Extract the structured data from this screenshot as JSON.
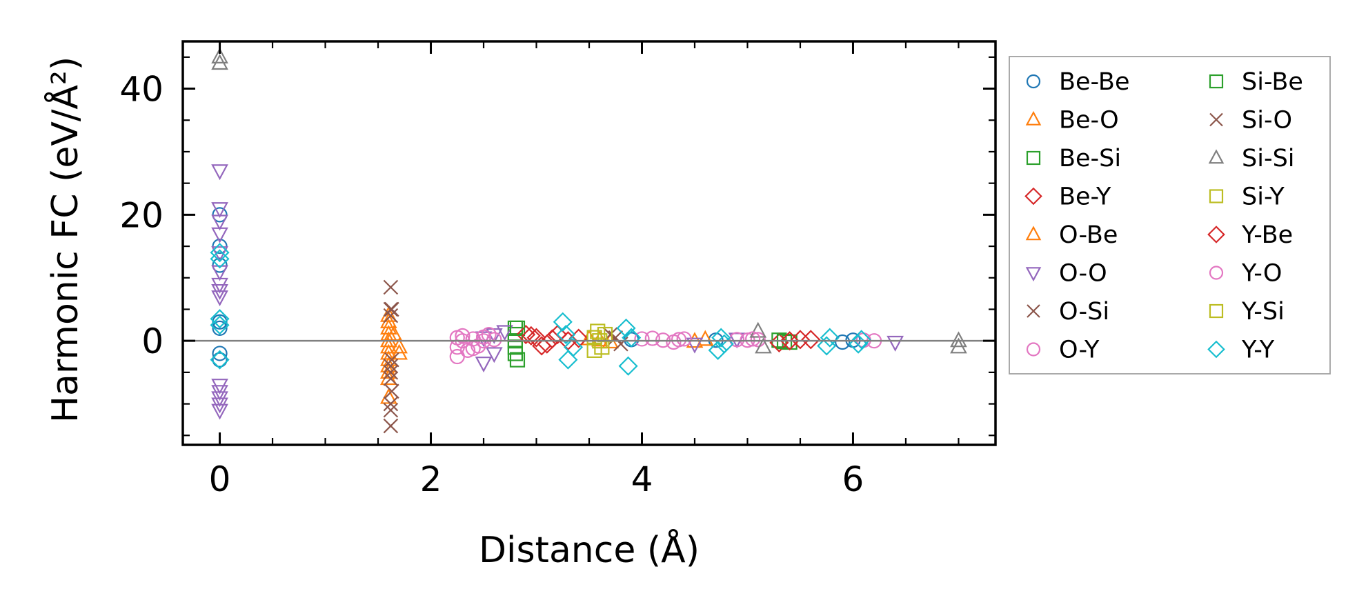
{
  "chart_data": {
    "type": "scatter",
    "title": "",
    "xlabel": "Distance (Å)",
    "ylabel": "Harmonic FC (eV/Å²)",
    "xlim": [
      -0.35,
      7.35
    ],
    "ylim": [
      -16.5,
      47.5
    ],
    "xticks": [
      0,
      2,
      4,
      6
    ],
    "yticks": [
      0,
      20,
      40
    ],
    "xtick_labels": [
      "0",
      "2",
      "4",
      "6"
    ],
    "ytick_labels": [
      "0",
      "20",
      "40"
    ],
    "zero_line": true,
    "grid": false,
    "legend": "outside-right, 2 columns",
    "series": [
      {
        "name": "Be-Be",
        "marker": "circle",
        "color": "#1f77b4",
        "points": [
          [
            0,
            20
          ],
          [
            0,
            15
          ],
          [
            0,
            12
          ],
          [
            0,
            3
          ],
          [
            0,
            2
          ],
          [
            0,
            -2
          ],
          [
            0,
            -3
          ],
          [
            3.9,
            0.2
          ],
          [
            4.7,
            0.1
          ],
          [
            5.9,
            -0.2
          ],
          [
            6.0,
            0.1
          ]
        ]
      },
      {
        "name": "Be-O",
        "marker": "triangle-up",
        "color": "#ff7f0e",
        "points": [
          [
            1.6,
            4
          ],
          [
            1.6,
            2
          ],
          [
            1.6,
            0
          ],
          [
            1.6,
            -2
          ],
          [
            1.6,
            -4
          ],
          [
            1.6,
            -6
          ],
          [
            1.6,
            -9
          ],
          [
            1.65,
            1
          ],
          [
            1.7,
            -1
          ],
          [
            3.5,
            0.3
          ],
          [
            3.7,
            -0.2
          ],
          [
            4.6,
            0.2
          ]
        ]
      },
      {
        "name": "Be-Si",
        "marker": "square",
        "color": "#2ca02c",
        "points": [
          [
            2.8,
            2
          ],
          [
            2.8,
            1
          ],
          [
            2.8,
            0
          ],
          [
            2.8,
            -1
          ],
          [
            2.8,
            -2
          ],
          [
            5.3,
            0.1
          ],
          [
            5.4,
            -0.2
          ]
        ]
      },
      {
        "name": "Be-Y",
        "marker": "diamond",
        "color": "#d62728",
        "points": [
          [
            2.9,
            1
          ],
          [
            3.0,
            0.5
          ],
          [
            3.1,
            -0.5
          ],
          [
            3.2,
            1
          ],
          [
            3.3,
            0
          ],
          [
            3.4,
            0.4
          ],
          [
            5.3,
            -0.3
          ],
          [
            5.6,
            0.2
          ]
        ]
      },
      {
        "name": "O-Be",
        "marker": "triangle-up",
        "color": "#ff7f0e",
        "points": [
          [
            1.6,
            3
          ],
          [
            1.6,
            1
          ],
          [
            1.6,
            -1
          ],
          [
            1.6,
            -3
          ],
          [
            1.6,
            -5
          ],
          [
            1.7,
            -2
          ],
          [
            3.6,
            0.1
          ],
          [
            4.5,
            -0.1
          ]
        ]
      },
      {
        "name": "O-O",
        "marker": "triangle-down",
        "color": "#9467bd",
        "points": [
          [
            0,
            27
          ],
          [
            0,
            21
          ],
          [
            0,
            19
          ],
          [
            0,
            17
          ],
          [
            0,
            14
          ],
          [
            0,
            11
          ],
          [
            0,
            9
          ],
          [
            0,
            8
          ],
          [
            0,
            7
          ],
          [
            0,
            -7
          ],
          [
            0,
            -8
          ],
          [
            0,
            -9
          ],
          [
            0,
            -10
          ],
          [
            0,
            -11
          ],
          [
            2.5,
            -3.5
          ],
          [
            2.6,
            -2
          ],
          [
            2.5,
            0.5
          ],
          [
            2.6,
            1
          ],
          [
            2.7,
            1.5
          ],
          [
            4.5,
            -0.5
          ],
          [
            4.9,
            0.3
          ],
          [
            6.4,
            -0.2
          ]
        ]
      },
      {
        "name": "O-Si",
        "marker": "x",
        "color": "#8c564b",
        "points": [
          [
            1.62,
            8.5
          ],
          [
            1.62,
            5
          ],
          [
            1.62,
            4
          ],
          [
            1.62,
            -4
          ],
          [
            1.62,
            -5
          ],
          [
            1.62,
            -6
          ],
          [
            1.62,
            -10
          ],
          [
            1.62,
            -11
          ],
          [
            1.62,
            -13.5
          ],
          [
            3.7,
            1
          ],
          [
            3.8,
            -0.5
          ]
        ]
      },
      {
        "name": "O-Y",
        "marker": "circle",
        "color": "#e377c2",
        "points": [
          [
            2.25,
            0.5
          ],
          [
            2.25,
            -1
          ],
          [
            2.25,
            -2.5
          ],
          [
            2.3,
            0
          ],
          [
            2.35,
            -1.5
          ],
          [
            2.4,
            0.3
          ],
          [
            2.45,
            -0.8
          ],
          [
            2.5,
            0
          ],
          [
            2.55,
            1
          ],
          [
            2.6,
            0.2
          ],
          [
            4.0,
            0.3
          ],
          [
            4.2,
            0.1
          ],
          [
            4.3,
            -0.2
          ],
          [
            4.4,
            0.3
          ],
          [
            4.9,
            0.2
          ],
          [
            5.0,
            0.1
          ],
          [
            5.1,
            0.2
          ],
          [
            6.1,
            0.1
          ],
          [
            6.2,
            0
          ]
        ]
      },
      {
        "name": "Si-Be",
        "marker": "square",
        "color": "#2ca02c",
        "points": [
          [
            2.82,
            -3
          ],
          [
            2.82,
            2
          ],
          [
            5.35,
            -0.1
          ]
        ]
      },
      {
        "name": "Si-O",
        "marker": "x",
        "color": "#8c564b",
        "points": [
          [
            1.63,
            5
          ],
          [
            1.63,
            -3
          ],
          [
            1.63,
            -8
          ],
          [
            3.75,
            0.5
          ]
        ]
      },
      {
        "name": "Si-Si",
        "marker": "triangle-up",
        "color": "#7f7f7f",
        "points": [
          [
            0,
            45
          ],
          [
            0,
            44
          ],
          [
            5.1,
            1.5
          ],
          [
            5.15,
            -1
          ],
          [
            7.0,
            0
          ],
          [
            7.0,
            -1
          ]
        ]
      },
      {
        "name": "Si-Y",
        "marker": "square",
        "color": "#bcbd22",
        "points": [
          [
            3.55,
            0.5
          ],
          [
            3.55,
            -1.5
          ],
          [
            3.6,
            0
          ],
          [
            3.65,
            1
          ]
        ]
      },
      {
        "name": "Y-Be",
        "marker": "diamond",
        "color": "#d62728",
        "points": [
          [
            2.95,
            0.8
          ],
          [
            3.05,
            -0.8
          ],
          [
            3.15,
            0.3
          ],
          [
            5.4,
            0
          ],
          [
            5.5,
            0.2
          ]
        ]
      },
      {
        "name": "Y-O",
        "marker": "circle",
        "color": "#e377c2",
        "points": [
          [
            2.3,
            0.8
          ],
          [
            2.4,
            -1.2
          ],
          [
            2.5,
            0.6
          ],
          [
            4.1,
            0.4
          ],
          [
            4.35,
            0.2
          ],
          [
            5.05,
            0.3
          ]
        ]
      },
      {
        "name": "Y-Si",
        "marker": "square",
        "color": "#bcbd22",
        "points": [
          [
            3.58,
            1.5
          ],
          [
            3.62,
            -1
          ]
        ]
      },
      {
        "name": "Y-Y",
        "marker": "diamond",
        "color": "#17becf",
        "points": [
          [
            0,
            14
          ],
          [
            0,
            13
          ],
          [
            0,
            3.5
          ],
          [
            0,
            2.5
          ],
          [
            0,
            -3
          ],
          [
            3.25,
            3
          ],
          [
            3.28,
            1
          ],
          [
            3.3,
            -3
          ],
          [
            3.35,
            -1
          ],
          [
            3.85,
            2
          ],
          [
            3.87,
            -4
          ],
          [
            3.9,
            0.5
          ],
          [
            4.72,
            -1.5
          ],
          [
            4.75,
            0.5
          ],
          [
            4.78,
            -0.5
          ],
          [
            5.75,
            -0.8
          ],
          [
            5.78,
            0.5
          ],
          [
            6.05,
            -0.5
          ],
          [
            6.08,
            0.2
          ]
        ]
      }
    ]
  }
}
